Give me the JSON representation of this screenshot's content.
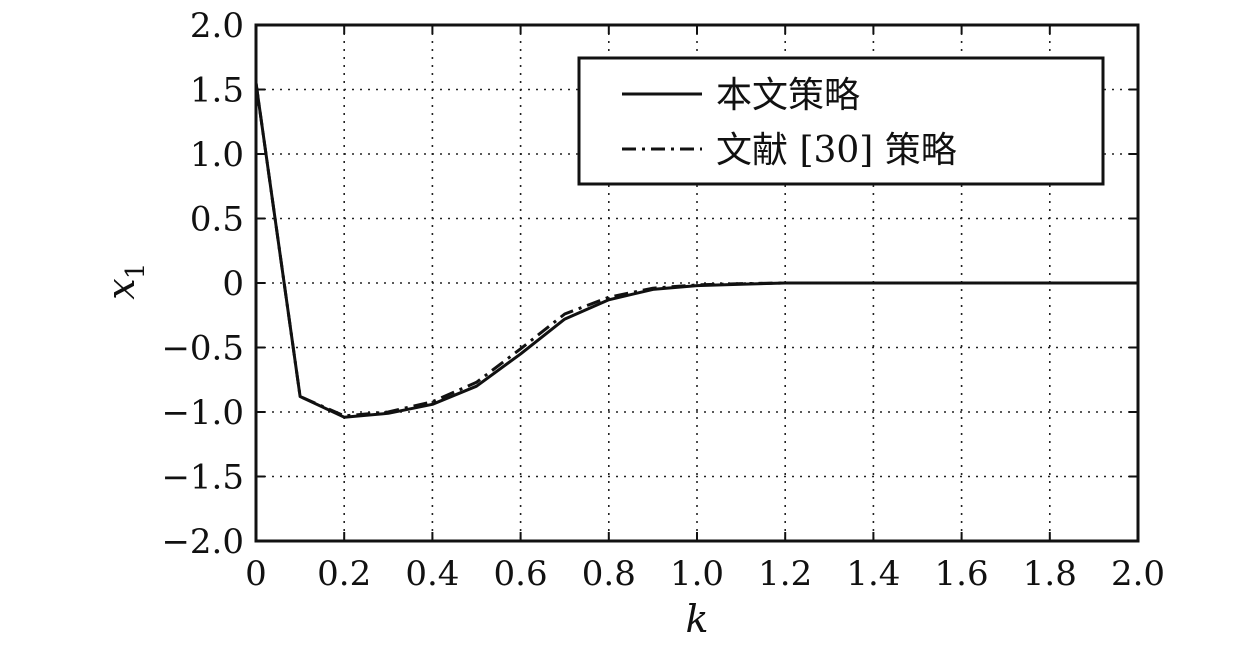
{
  "chart_data": {
    "type": "line",
    "xlabel": "k",
    "ylabel": {
      "main": "x",
      "sub": "1"
    },
    "xlim": [
      0,
      2.0
    ],
    "ylim": [
      -2.0,
      2.0
    ],
    "xticks": [
      0,
      0.2,
      0.4,
      0.6,
      0.8,
      1.0,
      1.2,
      1.4,
      1.6,
      1.8,
      2.0
    ],
    "xtick_labels": [
      "0",
      "0.2",
      "0.4",
      "0.6",
      "0.8",
      "1.0",
      "1.2",
      "1.4",
      "1.6",
      "1.8",
      "2.0"
    ],
    "yticks": [
      2.0,
      1.5,
      1.0,
      0.5,
      0,
      -0.5,
      -1.0,
      -1.5,
      -2.0
    ],
    "ytick_labels": [
      "2.0",
      "1.5",
      "1.0",
      "0.5",
      "0",
      "−0.5",
      "−1.0",
      "−1.5",
      "−2.0"
    ],
    "grid": true,
    "legend_position": "top-right",
    "series": [
      {
        "name": "本文策略",
        "style": "solid",
        "color": "#111111",
        "x": [
          0,
          0.1,
          0.2,
          0.3,
          0.4,
          0.5,
          0.6,
          0.7,
          0.8,
          0.9,
          1.0,
          1.1,
          1.2,
          1.3,
          1.4,
          1.5,
          1.6,
          1.7,
          1.8,
          1.9,
          2.0
        ],
        "y": [
          1.55,
          -0.88,
          -1.04,
          -1.01,
          -0.94,
          -0.8,
          -0.55,
          -0.28,
          -0.13,
          -0.05,
          -0.02,
          -0.01,
          0,
          0,
          0,
          0,
          0,
          0,
          0,
          0,
          0
        ]
      },
      {
        "name": "文献 [30] 策略",
        "style": "dash-dot",
        "color": "#111111",
        "x": [
          0,
          0.1,
          0.2,
          0.3,
          0.4,
          0.5,
          0.6,
          0.7,
          0.8,
          0.9,
          1.0,
          1.1,
          1.2,
          1.3,
          1.4,
          1.5,
          1.6,
          1.7,
          1.8,
          1.9,
          2.0
        ],
        "y": [
          1.55,
          -0.88,
          -1.03,
          -1.0,
          -0.92,
          -0.77,
          -0.51,
          -0.24,
          -0.11,
          -0.04,
          -0.015,
          -0.005,
          0,
          0,
          0,
          0,
          0,
          0,
          0,
          0,
          0
        ]
      }
    ]
  }
}
